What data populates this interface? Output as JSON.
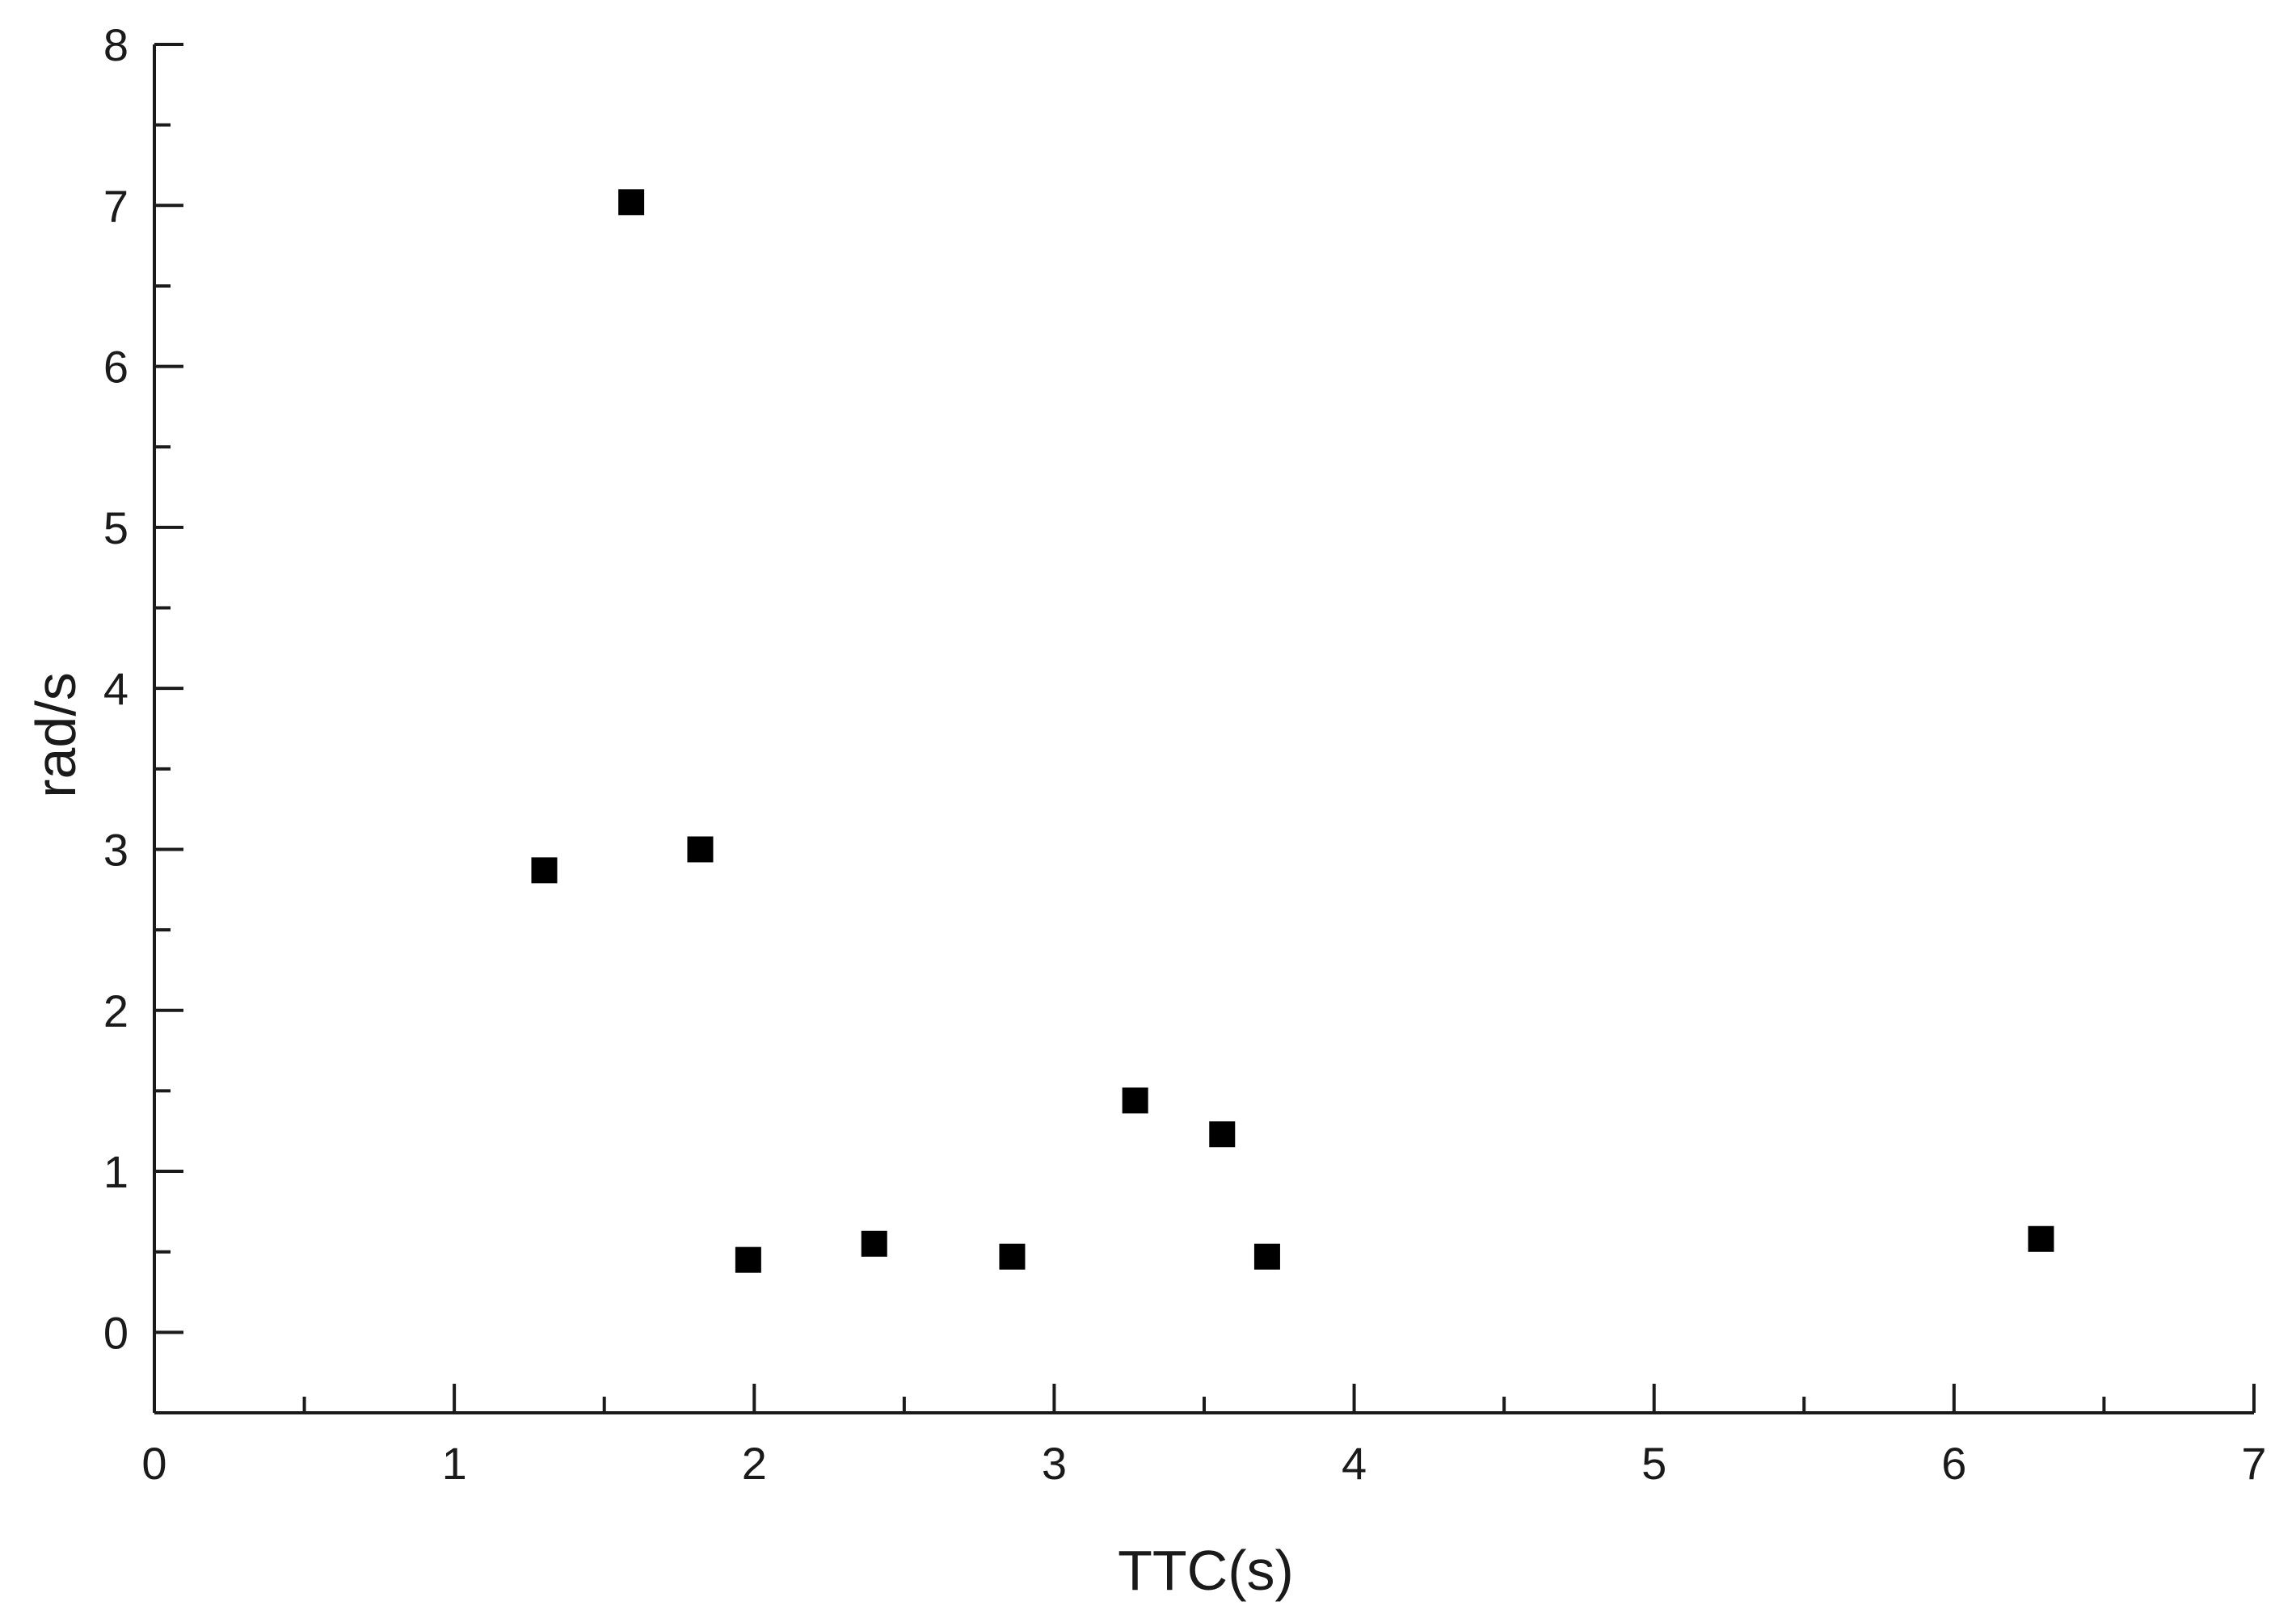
{
  "chart_data": {
    "type": "scatter",
    "title": "",
    "xlabel": "TTC(s)",
    "ylabel": "rad/s",
    "xlim": [
      0,
      7
    ],
    "ylim": [
      -0.5,
      8
    ],
    "x_ticks": [
      0,
      1,
      2,
      3,
      4,
      5,
      6,
      7
    ],
    "x_tick_labels": [
      "0",
      "1",
      "2",
      "3",
      "4",
      "5",
      "6",
      "7"
    ],
    "y_ticks": [
      0,
      1,
      2,
      3,
      4,
      5,
      6,
      7,
      8
    ],
    "y_tick_labels": [
      "0",
      "1",
      "2",
      "3",
      "4",
      "5",
      "6",
      "7",
      "8"
    ],
    "x_minor_step": 0.5,
    "y_minor_step": 0.5,
    "grid": false,
    "legend": "none",
    "marker": "square",
    "series": [
      {
        "points": [
          {
            "x": 1.3,
            "y": 2.87
          },
          {
            "x": 1.59,
            "y": 7.02
          },
          {
            "x": 1.82,
            "y": 3.0
          },
          {
            "x": 1.98,
            "y": 0.45
          },
          {
            "x": 2.4,
            "y": 0.55
          },
          {
            "x": 2.86,
            "y": 0.47
          },
          {
            "x": 3.27,
            "y": 1.44
          },
          {
            "x": 3.56,
            "y": 1.23
          },
          {
            "x": 3.71,
            "y": 0.47
          },
          {
            "x": 6.29,
            "y": 0.58
          }
        ]
      }
    ],
    "colors": {
      "marker": "#000000",
      "axis": "#1a1a1a"
    }
  }
}
